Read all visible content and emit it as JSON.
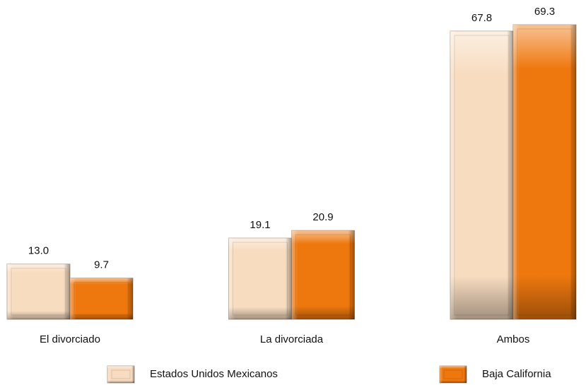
{
  "chart_data": {
    "type": "bar",
    "categories": [
      "El divorciado",
      "La divorciada",
      "Ambos"
    ],
    "series": [
      {
        "name": "Estados Unidos Mexicanos",
        "color": "#f8dcc0",
        "values": [
          13.0,
          19.1,
          67.8
        ],
        "value_labels": [
          "13.0",
          "19.1",
          "67.8"
        ]
      },
      {
        "name": "Baja California",
        "color": "#ef780e",
        "values": [
          9.7,
          20.9,
          69.3
        ],
        "value_labels": [
          "9.7",
          "20.9",
          "69.3"
        ]
      }
    ],
    "legend": "bottom"
  }
}
